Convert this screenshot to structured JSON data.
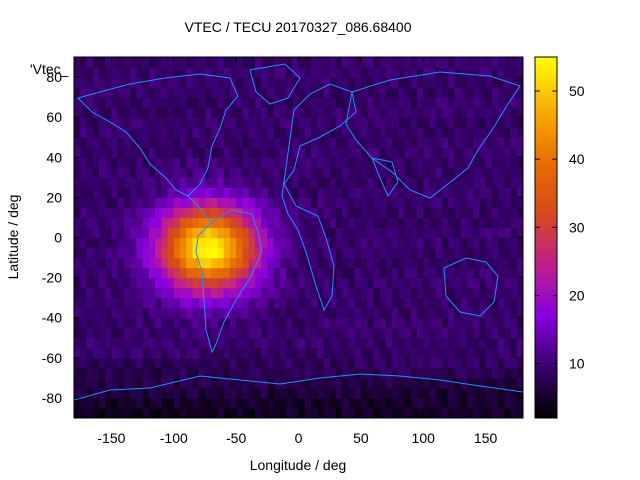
{
  "chart_data": {
    "type": "heatmap",
    "title": "VTEC / TECU 20170327_086.68400",
    "xlabel": "Longitude / deg",
    "ylabel": "Latitude / deg",
    "xlim": [
      -180,
      180
    ],
    "ylim": [
      -90,
      90
    ],
    "xticks": [
      -150,
      -100,
      -50,
      0,
      50,
      100,
      150
    ],
    "yticks": [
      80,
      60,
      40,
      20,
      0,
      -20,
      -40,
      -60,
      -80
    ],
    "colorbar": {
      "min": 2,
      "max": 55,
      "ticks": [
        10,
        20,
        30,
        40,
        50
      ]
    },
    "colormap": [
      "#000000",
      "#3a0070",
      "#8a00e0",
      "#c0208a",
      "#d64b18",
      "#e87000",
      "#f9b000",
      "#ffff00"
    ],
    "key_label": "'Vtec_",
    "cell_size_deg": 5,
    "background_tec": 9,
    "polar_tec": 4,
    "anomaly": {
      "center_lon": -72,
      "center_lat": -5,
      "peak_tec": 55,
      "lon_spread": 48,
      "lat_spread": 26
    },
    "coastline_color": "#1e90ff"
  }
}
